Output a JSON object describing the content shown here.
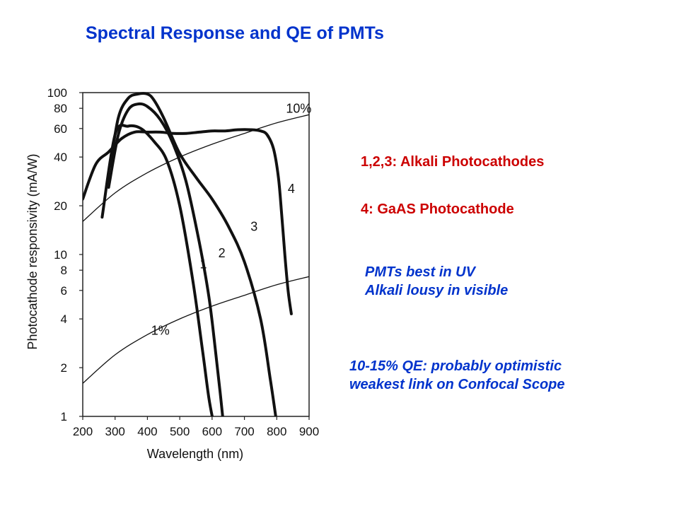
{
  "slide": {
    "title": "Spectral Response and QE of PMTs",
    "notes": [
      {
        "line1": "1,2,3:  Alkali Photocathodes",
        "line2": ""
      },
      {
        "line1": "4: GaAS Photocathode",
        "line2": ""
      },
      {
        "line1": "PMTs best in UV",
        "line2": "Alkali lousy in visible"
      },
      {
        "line1": "10-15% QE: probably optimistic",
        "line2": "weakest link on Confocal Scope"
      }
    ],
    "colors": {
      "title": "#0033cc",
      "red_notes": "#cc0000",
      "blue_notes": "#0033cc",
      "curves": "#111111"
    }
  },
  "chart_data": {
    "type": "line",
    "title": "",
    "xlabel": "Wavelength (nm)",
    "ylabel": "Photocathode responsivity (mA/W)",
    "xlim": [
      200,
      900
    ],
    "ylim": [
      1,
      100
    ],
    "yscale": "log",
    "grid": false,
    "legend": "none",
    "x_ticks": [
      200,
      300,
      400,
      500,
      600,
      700,
      800,
      900
    ],
    "y_ticks": [
      {
        "value": 1,
        "label": "1"
      },
      {
        "value": 2,
        "label": "2"
      },
      {
        "value": 4,
        "label": "4"
      },
      {
        "value": 6,
        "label": "6"
      },
      {
        "value": 8,
        "label": "8"
      },
      {
        "value": 10,
        "label": "10"
      },
      {
        "value": 20,
        "label": "20"
      },
      {
        "value": 40,
        "label": "40"
      },
      {
        "value": 60,
        "label": "60"
      },
      {
        "value": 80,
        "label": "80"
      },
      {
        "value": 100,
        "label": "100"
      }
    ],
    "series": [
      {
        "name": "1",
        "x": [
          260,
          300,
          340,
          380,
          420,
          460,
          500,
          540,
          570,
          590,
          605
        ],
        "y": [
          17,
          55,
          62,
          60,
          50,
          38,
          20,
          7,
          2.6,
          1.3,
          0.9
        ]
      },
      {
        "name": "2",
        "x": [
          280,
          310,
          340,
          370,
          400,
          440,
          480,
          520,
          560,
          590,
          610,
          625,
          635
        ],
        "y": [
          26,
          55,
          78,
          85,
          82,
          68,
          48,
          28,
          12,
          5.5,
          2.6,
          1.4,
          0.9
        ]
      },
      {
        "name": "3",
        "x": [
          285,
          310,
          340,
          370,
          400,
          420,
          450,
          500,
          550,
          600,
          650,
          700,
          750,
          780,
          800
        ],
        "y": [
          35,
          70,
          92,
          98,
          98,
          90,
          70,
          42,
          30,
          22,
          15,
          9,
          4,
          1.7,
          0.9
        ]
      },
      {
        "name": "4",
        "x": [
          200,
          240,
          280,
          320,
          360,
          400,
          440,
          480,
          520,
          560,
          600,
          640,
          680,
          720,
          750,
          770,
          790,
          805,
          815,
          825,
          835,
          845
        ],
        "y": [
          22,
          36,
          43,
          52,
          57,
          57,
          57,
          56,
          56,
          57,
          58,
          58,
          59,
          59,
          58,
          55,
          45,
          30,
          18,
          10,
          6,
          4.3
        ]
      },
      {
        "name": "10%",
        "x": [
          200,
          300,
          400,
          500,
          600,
          700,
          800,
          900
        ],
        "y": [
          16,
          24,
          32,
          40,
          48,
          56,
          65,
          73
        ]
      },
      {
        "name": "1%",
        "x": [
          200,
          300,
          400,
          500,
          600,
          700,
          800,
          900
        ],
        "y": [
          1.6,
          2.4,
          3.2,
          4.0,
          4.8,
          5.6,
          6.5,
          7.3
        ]
      }
    ],
    "annotations": [
      {
        "text": "1",
        "x": 573,
        "y": 8.2
      },
      {
        "text": "2",
        "x": 630,
        "y": 9.6
      },
      {
        "text": "3",
        "x": 730,
        "y": 14
      },
      {
        "text": "4",
        "x": 845,
        "y": 24
      },
      {
        "text": "10%",
        "x": 868,
        "y": 75
      },
      {
        "text": "1%",
        "x": 440,
        "y": 3.2
      }
    ]
  }
}
